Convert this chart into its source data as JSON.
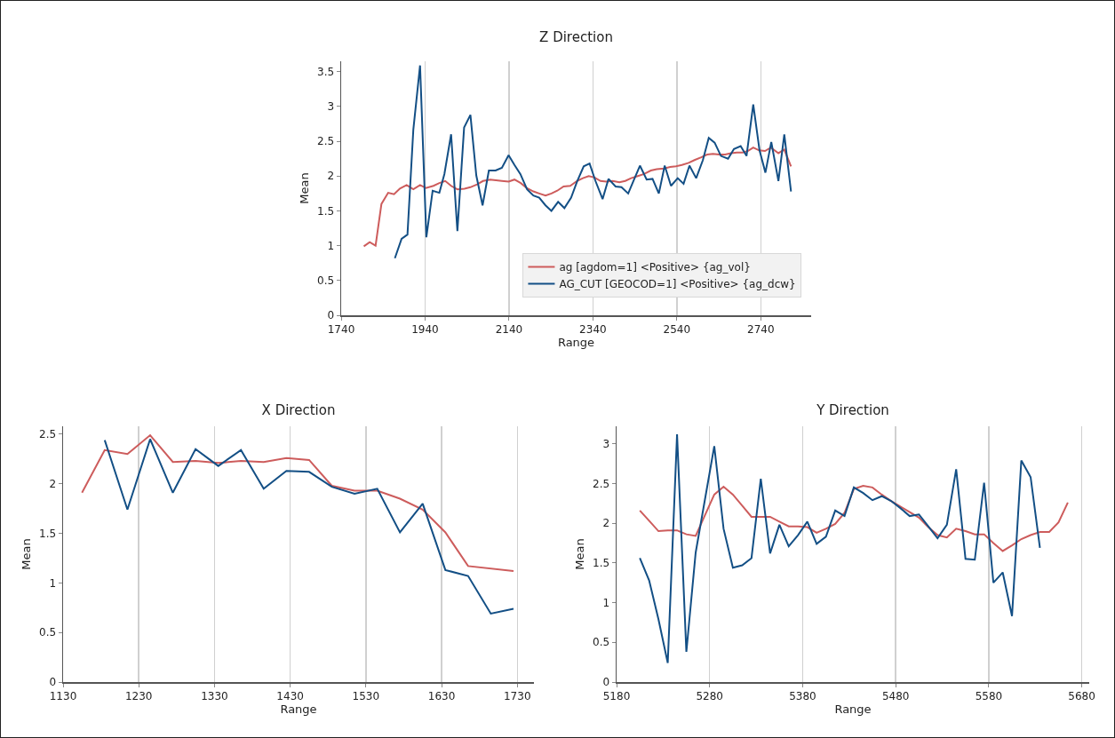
{
  "chart_data": [
    {
      "type": "line",
      "title": "Z Direction",
      "xlabel": "Range",
      "ylabel": "Mean",
      "xlim": [
        1740,
        2860
      ],
      "xticks": [
        1740,
        1940,
        2140,
        2340,
        2540,
        2740
      ],
      "ylim": [
        0,
        3.65
      ],
      "yticks": [
        0,
        0.5,
        1,
        1.5,
        2,
        2.5,
        3,
        3.5
      ],
      "grid": "x",
      "legend": "bottom right",
      "series": [
        {
          "name": "ag [agdom=1] <Positive> {ag_vol}",
          "color": "#cd5c5c",
          "x": [
            1794,
            1808,
            1822,
            1836,
            1852,
            1866,
            1880,
            1896,
            1912,
            1928,
            1942,
            1960,
            1974,
            1988,
            2002,
            2017,
            2034,
            2048,
            2064,
            2078,
            2095,
            2109,
            2123,
            2139,
            2153,
            2168,
            2182,
            2198,
            2212,
            2227,
            2241,
            2255,
            2270,
            2286,
            2302,
            2316,
            2330,
            2344,
            2358,
            2372,
            2387,
            2403,
            2417,
            2431,
            2447,
            2462,
            2478,
            2492,
            2509,
            2524,
            2538,
            2552,
            2568,
            2582,
            2598,
            2612,
            2626,
            2641,
            2655,
            2669,
            2683,
            2697,
            2709,
            2722,
            2736,
            2750,
            2764,
            2782,
            2796,
            2812
          ],
          "values": [
            0.99,
            1.05,
            1.0,
            1.6,
            1.76,
            1.74,
            1.82,
            1.87,
            1.81,
            1.87,
            1.83,
            1.86,
            1.9,
            1.93,
            1.86,
            1.81,
            1.82,
            1.84,
            1.88,
            1.93,
            1.95,
            1.94,
            1.93,
            1.92,
            1.95,
            1.9,
            1.83,
            1.78,
            1.75,
            1.72,
            1.75,
            1.79,
            1.85,
            1.86,
            1.93,
            1.97,
            2.0,
            1.98,
            1.93,
            1.92,
            1.93,
            1.91,
            1.93,
            1.97,
            2.0,
            2.03,
            2.08,
            2.1,
            2.11,
            2.13,
            2.14,
            2.16,
            2.19,
            2.23,
            2.27,
            2.31,
            2.32,
            2.31,
            2.31,
            2.33,
            2.34,
            2.34,
            2.36,
            2.41,
            2.37,
            2.36,
            2.41,
            2.33,
            2.38,
            2.14
          ]
        },
        {
          "name": "AG_CUT [GEOCOD=1] <Positive> {ag_dcw}",
          "color": "#134f85",
          "x": [
            1868,
            1884,
            1898,
            1912,
            1928,
            1943,
            1958,
            1974,
            1986,
            2002,
            2017,
            2033,
            2048,
            2062,
            2077,
            2092,
            2108,
            2123,
            2139,
            2153,
            2167,
            2183,
            2198,
            2212,
            2227,
            2241,
            2257,
            2272,
            2288,
            2302,
            2318,
            2332,
            2346,
            2363,
            2377,
            2394,
            2408,
            2424,
            2438,
            2452,
            2468,
            2482,
            2497,
            2511,
            2526,
            2542,
            2556,
            2570,
            2586,
            2602,
            2616,
            2630,
            2645,
            2662,
            2676,
            2692,
            2706,
            2722,
            2737,
            2751,
            2765,
            2782,
            2796,
            2812
          ],
          "values": [
            0.82,
            1.1,
            1.16,
            2.67,
            3.59,
            1.12,
            1.79,
            1.76,
            2.03,
            2.6,
            1.21,
            2.7,
            2.88,
            2.01,
            1.58,
            2.08,
            2.08,
            2.12,
            2.3,
            2.16,
            2.03,
            1.81,
            1.72,
            1.69,
            1.58,
            1.5,
            1.63,
            1.54,
            1.69,
            1.92,
            2.14,
            2.18,
            1.93,
            1.67,
            1.96,
            1.85,
            1.84,
            1.75,
            1.95,
            2.15,
            1.95,
            1.96,
            1.75,
            2.15,
            1.86,
            1.97,
            1.89,
            2.15,
            1.97,
            2.23,
            2.55,
            2.48,
            2.29,
            2.25,
            2.39,
            2.43,
            2.29,
            3.03,
            2.37,
            2.05,
            2.49,
            1.93,
            2.6,
            1.78
          ]
        }
      ]
    },
    {
      "type": "line",
      "title": "X Direction",
      "xlabel": "Range",
      "ylabel": "Mean",
      "xlim": [
        1130,
        1752
      ],
      "xticks": [
        1130,
        1230,
        1330,
        1430,
        1530,
        1630,
        1730
      ],
      "ylim": [
        0,
        2.58
      ],
      "yticks": [
        0,
        0.5,
        1,
        1.5,
        2,
        2.5
      ],
      "grid": "x",
      "series": [
        {
          "color": "#cd5c5c",
          "x": [
            1155,
            1185,
            1215,
            1245,
            1275,
            1305,
            1335,
            1365,
            1395,
            1425,
            1455,
            1485,
            1515,
            1545,
            1575,
            1605,
            1635,
            1665,
            1725
          ],
          "values": [
            1.91,
            2.34,
            2.3,
            2.49,
            2.22,
            2.23,
            2.21,
            2.23,
            2.22,
            2.26,
            2.24,
            1.98,
            1.93,
            1.93,
            1.85,
            1.74,
            1.51,
            1.17,
            1.12
          ]
        },
        {
          "color": "#134f85",
          "x": [
            1185,
            1215,
            1245,
            1275,
            1305,
            1335,
            1365,
            1395,
            1425,
            1455,
            1485,
            1515,
            1545,
            1575,
            1605,
            1635,
            1665,
            1695,
            1725
          ],
          "values": [
            2.44,
            1.74,
            2.45,
            1.91,
            2.35,
            2.18,
            2.34,
            1.95,
            2.13,
            2.12,
            1.97,
            1.9,
            1.95,
            1.51,
            1.8,
            1.13,
            1.07,
            0.69,
            0.74
          ]
        }
      ]
    },
    {
      "type": "line",
      "title": "Y Direction",
      "xlabel": "Range",
      "ylabel": "Mean",
      "xlim": [
        5180,
        5688
      ],
      "xticks": [
        5180,
        5280,
        5380,
        5480,
        5580,
        5680
      ],
      "ylim": [
        0,
        3.22
      ],
      "yticks": [
        0,
        0.5,
        1,
        1.5,
        2,
        2.5,
        3
      ],
      "grid": "x",
      "series": [
        {
          "color": "#cd5c5c",
          "x": [
            5205,
            5215,
            5225,
            5235,
            5245,
            5255,
            5265,
            5275,
            5285,
            5295,
            5305,
            5315,
            5325,
            5335,
            5345,
            5355,
            5365,
            5375,
            5385,
            5395,
            5405,
            5415,
            5425,
            5435,
            5445,
            5455,
            5465,
            5475,
            5485,
            5495,
            5505,
            5515,
            5525,
            5535,
            5545,
            5555,
            5565,
            5575,
            5585,
            5595,
            5605,
            5615,
            5625,
            5635,
            5645,
            5655,
            5665
          ],
          "values": [
            2.16,
            2.03,
            1.9,
            1.91,
            1.91,
            1.86,
            1.84,
            2.1,
            2.36,
            2.46,
            2.36,
            2.22,
            2.08,
            2.08,
            2.08,
            2.02,
            1.96,
            1.96,
            1.95,
            1.88,
            1.93,
            1.99,
            2.13,
            2.43,
            2.47,
            2.45,
            2.36,
            2.28,
            2.21,
            2.14,
            2.07,
            1.95,
            1.85,
            1.82,
            1.93,
            1.9,
            1.86,
            1.86,
            1.75,
            1.65,
            1.72,
            1.8,
            1.85,
            1.89,
            1.89,
            2.01,
            2.26
          ]
        },
        {
          "color": "#134f85",
          "x": [
            5205,
            5215,
            5225,
            5235,
            5245,
            5255,
            5265,
            5275,
            5285,
            5295,
            5305,
            5315,
            5325,
            5335,
            5345,
            5355,
            5365,
            5375,
            5385,
            5395,
            5405,
            5415,
            5425,
            5435,
            5445,
            5455,
            5465,
            5475,
            5485,
            5495,
            5505,
            5515,
            5525,
            5535,
            5545,
            5555,
            5565,
            5575,
            5585,
            5595,
            5605,
            5615,
            5625,
            5635
          ],
          "values": [
            1.56,
            1.28,
            0.79,
            0.24,
            3.12,
            0.38,
            1.63,
            2.3,
            2.97,
            1.93,
            1.44,
            1.47,
            1.56,
            2.56,
            1.62,
            1.98,
            1.71,
            1.85,
            2.02,
            1.74,
            1.83,
            2.16,
            2.09,
            2.45,
            2.38,
            2.29,
            2.34,
            2.28,
            2.19,
            2.09,
            2.11,
            1.96,
            1.81,
            1.98,
            2.68,
            1.55,
            1.54,
            2.51,
            1.25,
            1.38,
            0.83,
            2.79,
            2.58,
            1.69
          ]
        }
      ]
    }
  ]
}
